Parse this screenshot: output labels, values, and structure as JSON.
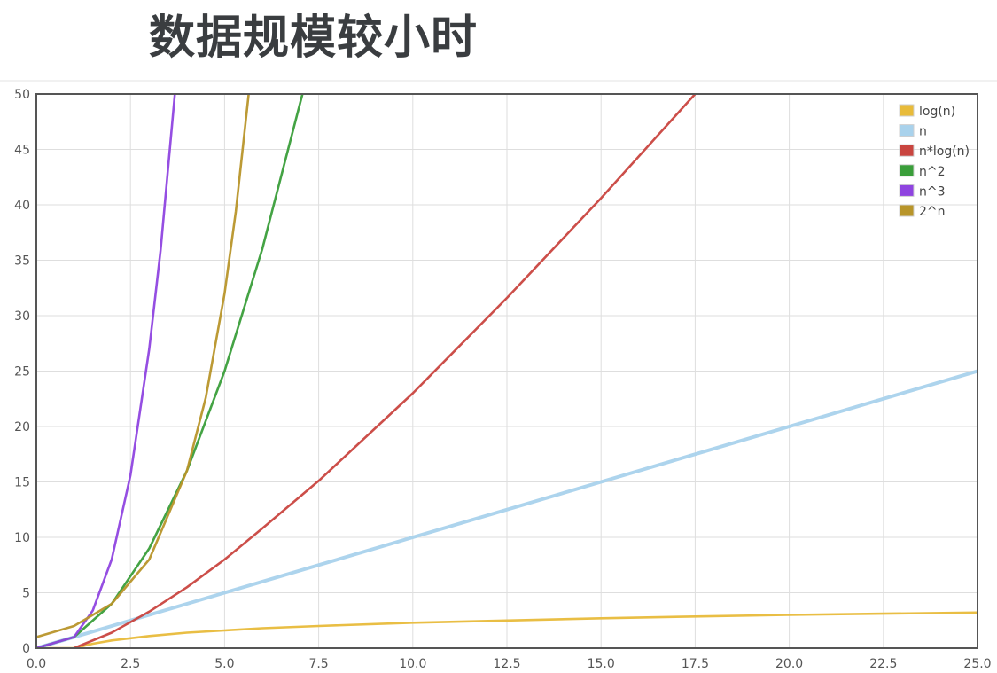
{
  "slide": {
    "title": "数据规模较小时"
  },
  "chart_data": {
    "type": "line",
    "title": "",
    "xlabel": "",
    "ylabel": "",
    "xlim": [
      0,
      25
    ],
    "ylim": [
      0,
      50
    ],
    "x_ticks": [
      "0.0",
      "2.5",
      "5.0",
      "7.5",
      "10.0",
      "12.5",
      "15.0",
      "17.5",
      "20.0",
      "22.5",
      "25.0"
    ],
    "y_ticks": [
      "0",
      "5",
      "10",
      "15",
      "20",
      "25",
      "30",
      "35",
      "40",
      "45",
      "50"
    ],
    "grid": true,
    "legend_position": "top-right",
    "series": [
      {
        "name": "log(n)",
        "color": "#e8bb3a",
        "x": [
          0,
          1,
          1.5,
          2,
          2.5,
          3,
          4,
          5,
          6,
          7.5,
          10,
          12.5,
          15,
          17.5,
          20,
          22.5,
          25
        ],
        "y": [
          0,
          0,
          0.4,
          0.7,
          0.9,
          1.1,
          1.4,
          1.6,
          1.8,
          2.0,
          2.3,
          2.5,
          2.7,
          2.86,
          3.0,
          3.11,
          3.22
        ]
      },
      {
        "name": "n",
        "color": "#a9d2ec",
        "x": [
          0,
          5,
          10,
          15,
          20,
          25
        ],
        "y": [
          0,
          5,
          10,
          15,
          20,
          25
        ]
      },
      {
        "name": "n*log(n)",
        "color": "#c9453f",
        "x": [
          1,
          2,
          3,
          4,
          5,
          6,
          7.5,
          10,
          12.5,
          15,
          17.5
        ],
        "y": [
          0,
          1.4,
          3.3,
          5.5,
          8.0,
          10.8,
          15.1,
          23.0,
          31.6,
          40.6,
          50.0
        ]
      },
      {
        "name": "n^2",
        "color": "#3a9e3a",
        "x": [
          0,
          1,
          2,
          3,
          4,
          5,
          6,
          7.07
        ],
        "y": [
          0,
          1,
          4,
          9,
          16,
          25,
          36,
          50
        ]
      },
      {
        "name": "n^3",
        "color": "#8f44e0",
        "x": [
          0,
          1,
          1.5,
          2,
          2.5,
          3,
          3.3,
          3.68
        ],
        "y": [
          0,
          1,
          3.4,
          8,
          15.6,
          27,
          35.9,
          50
        ]
      },
      {
        "name": "2^n",
        "color": "#b8952a",
        "x": [
          0,
          1,
          2,
          3,
          4,
          4.5,
          5,
          5.3,
          5.64
        ],
        "y": [
          1,
          2,
          4,
          8,
          16,
          22.6,
          32,
          39.4,
          50
        ]
      }
    ]
  }
}
